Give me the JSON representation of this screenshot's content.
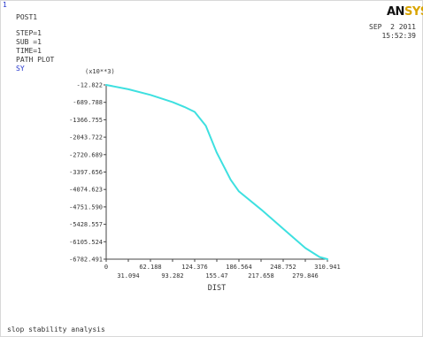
{
  "window": {
    "number": "1"
  },
  "header": {
    "title": "POST1",
    "lines": [
      "STEP=1",
      "SUB =1",
      "TIME=1",
      "PATH PLOT"
    ],
    "item_label": "SY"
  },
  "logo": {
    "main": "AN",
    "tail": "SYS"
  },
  "datetime": {
    "date": "SEP  2 2011",
    "time": "15:52:39"
  },
  "footer": {
    "title": "slop stability analysis"
  },
  "colors": {
    "curve": "#3ee0e0",
    "axes": "#444444",
    "item_label": "#2233cc",
    "logo_tail": "#d9a400"
  },
  "chart_data": {
    "type": "line",
    "xlabel": "DIST",
    "ylabel": "(x10**3)",
    "xlim": [
      0,
      310.941
    ],
    "ylim": [
      -6782.491,
      -12.822
    ],
    "x_ticks": [
      "0",
      "31.094",
      "62.188",
      "93.282",
      "124.376",
      "155.47",
      "186.564",
      "217.658",
      "248.752",
      "279.846",
      "310.941"
    ],
    "y_ticks": [
      "-12.822",
      "-689.788",
      "-1366.755",
      "-2043.722",
      "-2720.689",
      "-3397.656",
      "-4074.623",
      "-4751.590",
      "-5428.557",
      "-6105.524",
      "-6782.491"
    ],
    "grid": false,
    "series": [
      {
        "x": [
          0,
          31.094,
          62.188,
          93.282,
          110,
          124.376,
          140,
          155.47,
          175,
          186.564,
          217.658,
          248.752,
          279.846,
          300,
          310.941
        ],
        "y": [
          -12.822,
          -180,
          -400,
          -680,
          -870,
          -1060,
          -1600,
          -2650,
          -3700,
          -4150,
          -4850,
          -5600,
          -6350,
          -6700,
          -6782.491
        ]
      }
    ]
  }
}
